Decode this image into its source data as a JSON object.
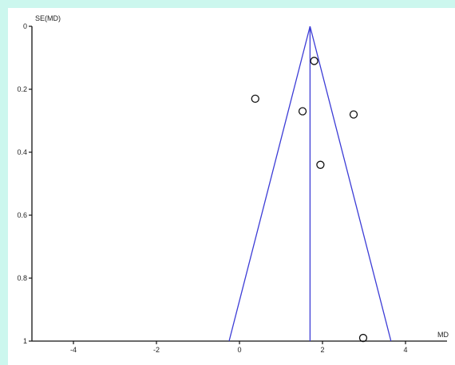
{
  "chart_data": {
    "type": "scatter",
    "title": "",
    "xlabel": "MD",
    "ylabel": "SE(MD)",
    "xlim": [
      -5,
      5
    ],
    "ylim": [
      0,
      1
    ],
    "y_inverted": true,
    "x_ticks": [
      -4,
      -2,
      0,
      2,
      4
    ],
    "x_tick_labels": [
      "-4",
      "-2",
      "0",
      "2",
      "4"
    ],
    "y_ticks": [
      0,
      0.2,
      0.4,
      0.6,
      0.8,
      1
    ],
    "y_tick_labels": [
      "0",
      "0.2",
      "0.4",
      "0.6",
      "0.8",
      "1"
    ],
    "pooled_estimate": 1.7,
    "funnel_limits_at_se_1": [
      -0.25,
      3.65
    ],
    "points": [
      {
        "x": 1.8,
        "y": 0.11
      },
      {
        "x": 0.38,
        "y": 0.23
      },
      {
        "x": 1.52,
        "y": 0.27
      },
      {
        "x": 2.75,
        "y": 0.28
      },
      {
        "x": 1.95,
        "y": 0.44
      },
      {
        "x": 2.98,
        "y": 0.99
      }
    ],
    "grid": false,
    "colors": {
      "funnel": "#3c3cd6",
      "points": "#111111",
      "axis": "#111111",
      "background": "#ccf7ee"
    }
  }
}
